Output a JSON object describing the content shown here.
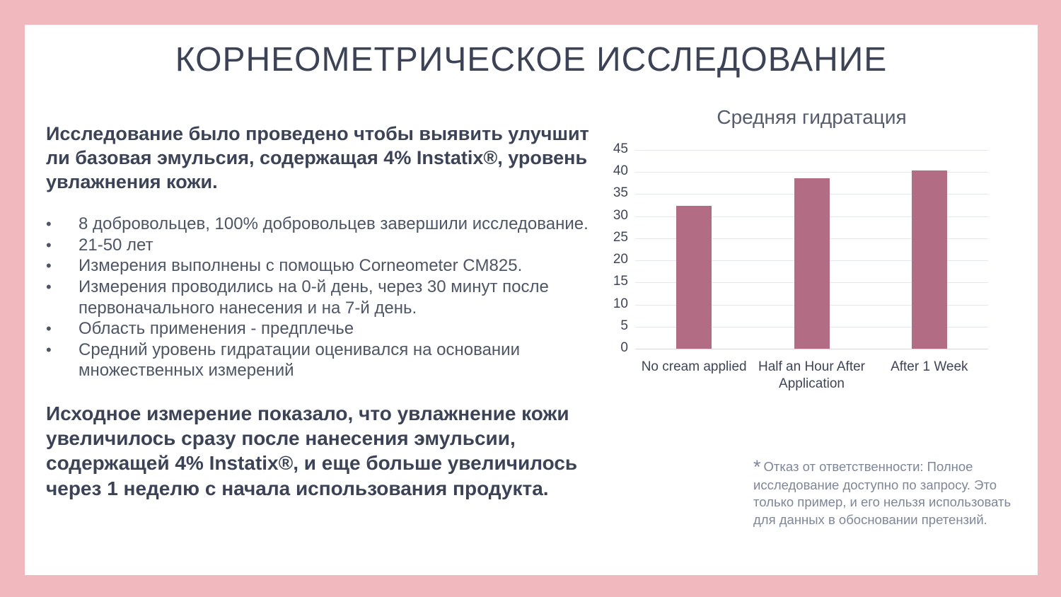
{
  "slide": {
    "title": "КОРНЕОМЕТРИЧЕСКОЕ ИССЛЕДОВАНИЕ",
    "intro": "Исследование было проведено чтобы выявить улучшит ли базовая эмульсия, содержащая 4% Instatix®, уровень увлажнения кожи.",
    "bullets": [
      "8 добровольцев, 100% добровольцев завершили исследование.",
      "21-50 лет",
      "Измерения выполнены с помощью Corneometer CM825.",
      "Измерения проводились на 0-й день, через 30 минут после первоначального нанесения и на 7-й день.",
      "Область применения - предплечье",
      "Средний уровень гидратации оценивался на основании множественных измерений"
    ],
    "conclusion": "Исходное измерение показало, что увлажнение кожи увеличилось сразу после нанесения эмульсии, содержащей 4% Instatix®, и еще больше увеличилось через 1 неделю с начала использования продукта.",
    "disclaimer": {
      "asterisk": "*",
      "text": "Отказ от ответственности: Полное исследование доступно по запросу. Это только пример, и его нельзя использовать для данных в обосновании претензий."
    },
    "colors": {
      "frame_pink": "#f1b8bd",
      "slide_background": "#ffffff",
      "title_text": "#3d4356",
      "body_text": "#3c4356",
      "bullet_text": "#4e5565",
      "disclaimer_text": "#7f8698"
    }
  },
  "chart_data": {
    "type": "bar",
    "title": "Средняя гидратация",
    "categories": [
      "No cream applied",
      "Half an Hour After Application",
      "After 1 Week"
    ],
    "values": [
      32.4,
      38.6,
      40.3
    ],
    "xlabel": "",
    "ylabel": "",
    "ylim": [
      0,
      45
    ],
    "ytick_step": 5,
    "grid": true,
    "legend": "none",
    "bar_color": "#b26d85",
    "gridline_color": "#e6e8ef"
  }
}
